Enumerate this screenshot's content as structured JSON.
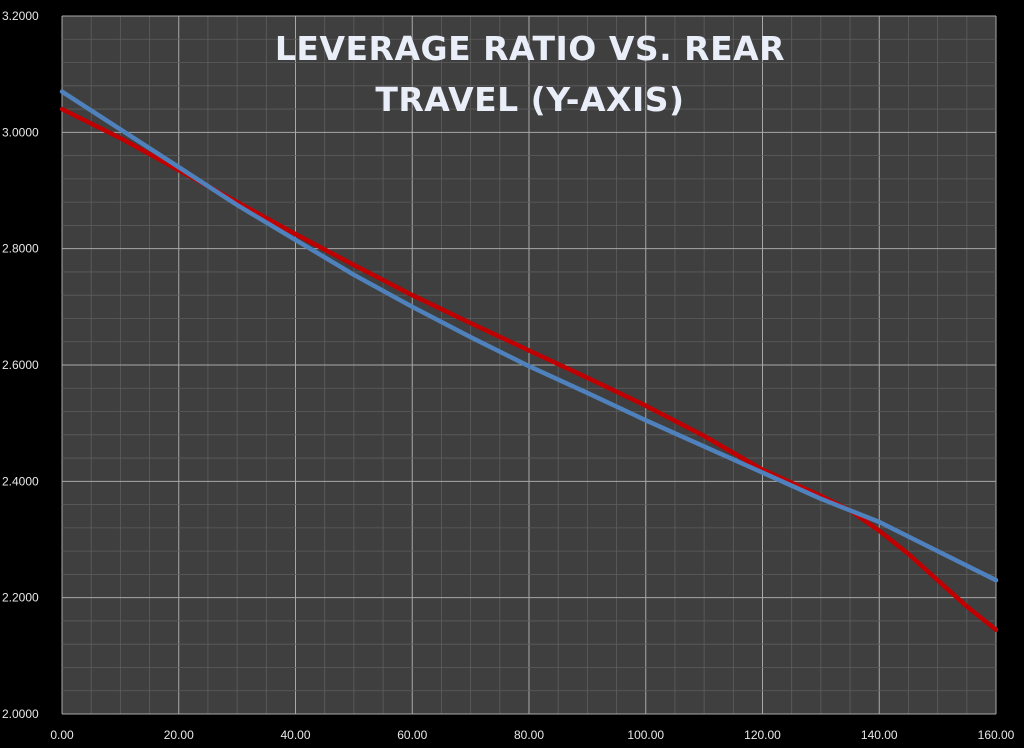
{
  "chart_data": {
    "type": "line",
    "title_lines": [
      "LEVERAGE RATIO VS. REAR",
      "TRAVEL (Y-AXIS)"
    ],
    "xlabel": "",
    "ylabel": "",
    "xlim": [
      0,
      160
    ],
    "ylim": [
      2.0,
      3.2
    ],
    "x_ticks": [
      "0.00",
      "20.00",
      "40.00",
      "60.00",
      "80.00",
      "100.00",
      "120.00",
      "140.00",
      "160.00"
    ],
    "y_ticks": [
      "2.0000",
      "2.2000",
      "2.4000",
      "2.6000",
      "2.8000",
      "3.0000",
      "3.2000"
    ],
    "grid": true,
    "background": "#3f3f3f",
    "series": [
      {
        "color": "#c00000",
        "x": [
          0,
          10,
          20,
          30,
          40,
          50,
          60,
          70,
          80,
          90,
          100,
          110,
          120,
          130,
          135,
          140,
          145,
          150,
          155,
          160
        ],
        "y": [
          3.04,
          2.99,
          2.935,
          2.88,
          2.825,
          2.772,
          2.72,
          2.672,
          2.625,
          2.578,
          2.53,
          2.478,
          2.42,
          2.375,
          2.35,
          2.315,
          2.275,
          2.23,
          2.185,
          2.145
        ]
      },
      {
        "color": "#4f81bd",
        "x": [
          0,
          10,
          20,
          30,
          40,
          50,
          60,
          70,
          80,
          90,
          100,
          110,
          120,
          130,
          140,
          150,
          160
        ],
        "y": [
          3.07,
          3.005,
          2.94,
          2.875,
          2.815,
          2.755,
          2.7,
          2.648,
          2.598,
          2.552,
          2.505,
          2.46,
          2.415,
          2.37,
          2.33,
          2.28,
          2.23
        ]
      }
    ]
  }
}
